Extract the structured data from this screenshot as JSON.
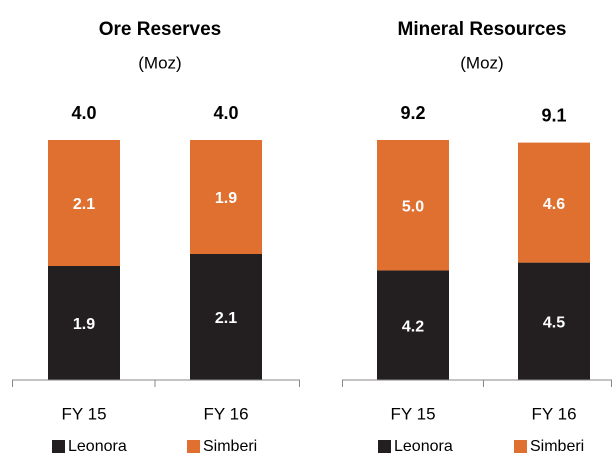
{
  "chart_data": [
    {
      "type": "stacked_bar",
      "title": "Ore Reserves",
      "subtitle": "(Moz)",
      "categories": [
        "FY 15",
        "FY 16"
      ],
      "series": [
        {
          "name": "Leonora",
          "color": "#231f20",
          "values": [
            1.9,
            2.1
          ],
          "value_labels": [
            "1.9",
            "2.1"
          ]
        },
        {
          "name": "Simberi",
          "color": "#e07030",
          "values": [
            2.1,
            1.9
          ],
          "value_labels": [
            "2.1",
            "1.9"
          ]
        }
      ],
      "totals": [
        4.0,
        4.0
      ],
      "total_labels": [
        "4.0",
        "4.0"
      ],
      "ylim": [
        0,
        4.0
      ]
    },
    {
      "type": "stacked_bar",
      "title": "Mineral Resources",
      "subtitle": "(Moz)",
      "categories": [
        "FY 15",
        "FY 16"
      ],
      "series": [
        {
          "name": "Leonora",
          "color": "#231f20",
          "values": [
            4.2,
            4.5
          ],
          "value_labels": [
            "4.2",
            "4.5"
          ]
        },
        {
          "name": "Simberi",
          "color": "#e07030",
          "values": [
            5.0,
            4.6
          ],
          "value_labels": [
            "5.0",
            "4.6"
          ]
        }
      ],
      "totals": [
        9.2,
        9.1
      ],
      "total_labels": [
        "9.2",
        "9.1"
      ],
      "ylim": [
        0,
        9.2
      ]
    }
  ]
}
